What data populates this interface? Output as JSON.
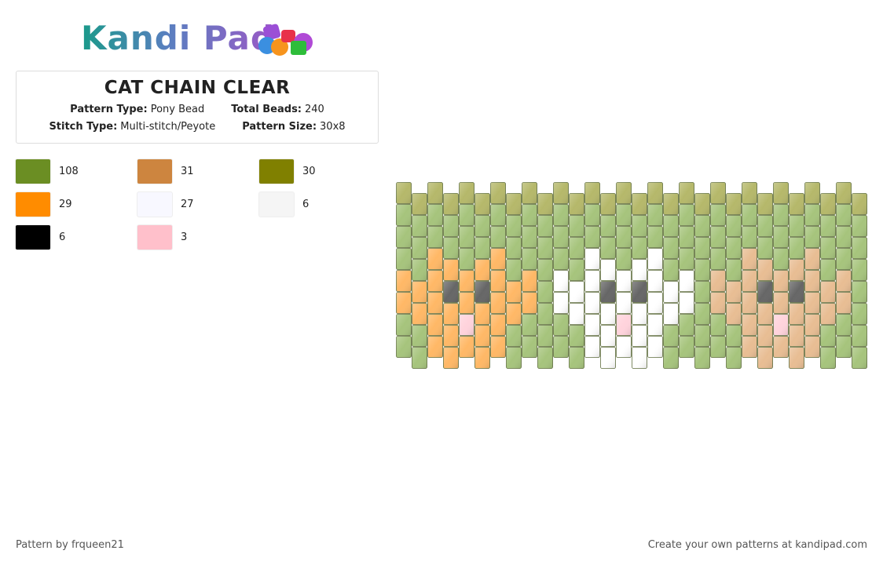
{
  "logo": "Kandi Pad",
  "pattern": {
    "title": "CAT CHAIN CLEAR",
    "fields": [
      [
        {
          "label": "Pattern Type:",
          "value": "Pony Bead"
        },
        {
          "label": "Total Beads:",
          "value": 240
        }
      ],
      [
        {
          "label": "Stitch Type:",
          "value": "Multi-stitch/Peyote"
        },
        {
          "label": "Pattern Size:",
          "value": "30x8"
        }
      ]
    ]
  },
  "palette": [
    {
      "color": "#6b8e23",
      "count": 108
    },
    {
      "color": "#cd853f",
      "count": 31
    },
    {
      "color": "#808000",
      "count": 30
    },
    {
      "color": "#ff8c00",
      "count": 29
    },
    {
      "color": "#f8f8ff",
      "count": 27
    },
    {
      "color": "#f5f5f5",
      "count": 6
    },
    {
      "color": "#000000",
      "count": 6
    },
    {
      "color": "#ffc0cb",
      "count": 3
    }
  ],
  "footer": {
    "left": "Pattern by frqueen21",
    "right": "Create your own patterns at kandipad.com"
  }
}
